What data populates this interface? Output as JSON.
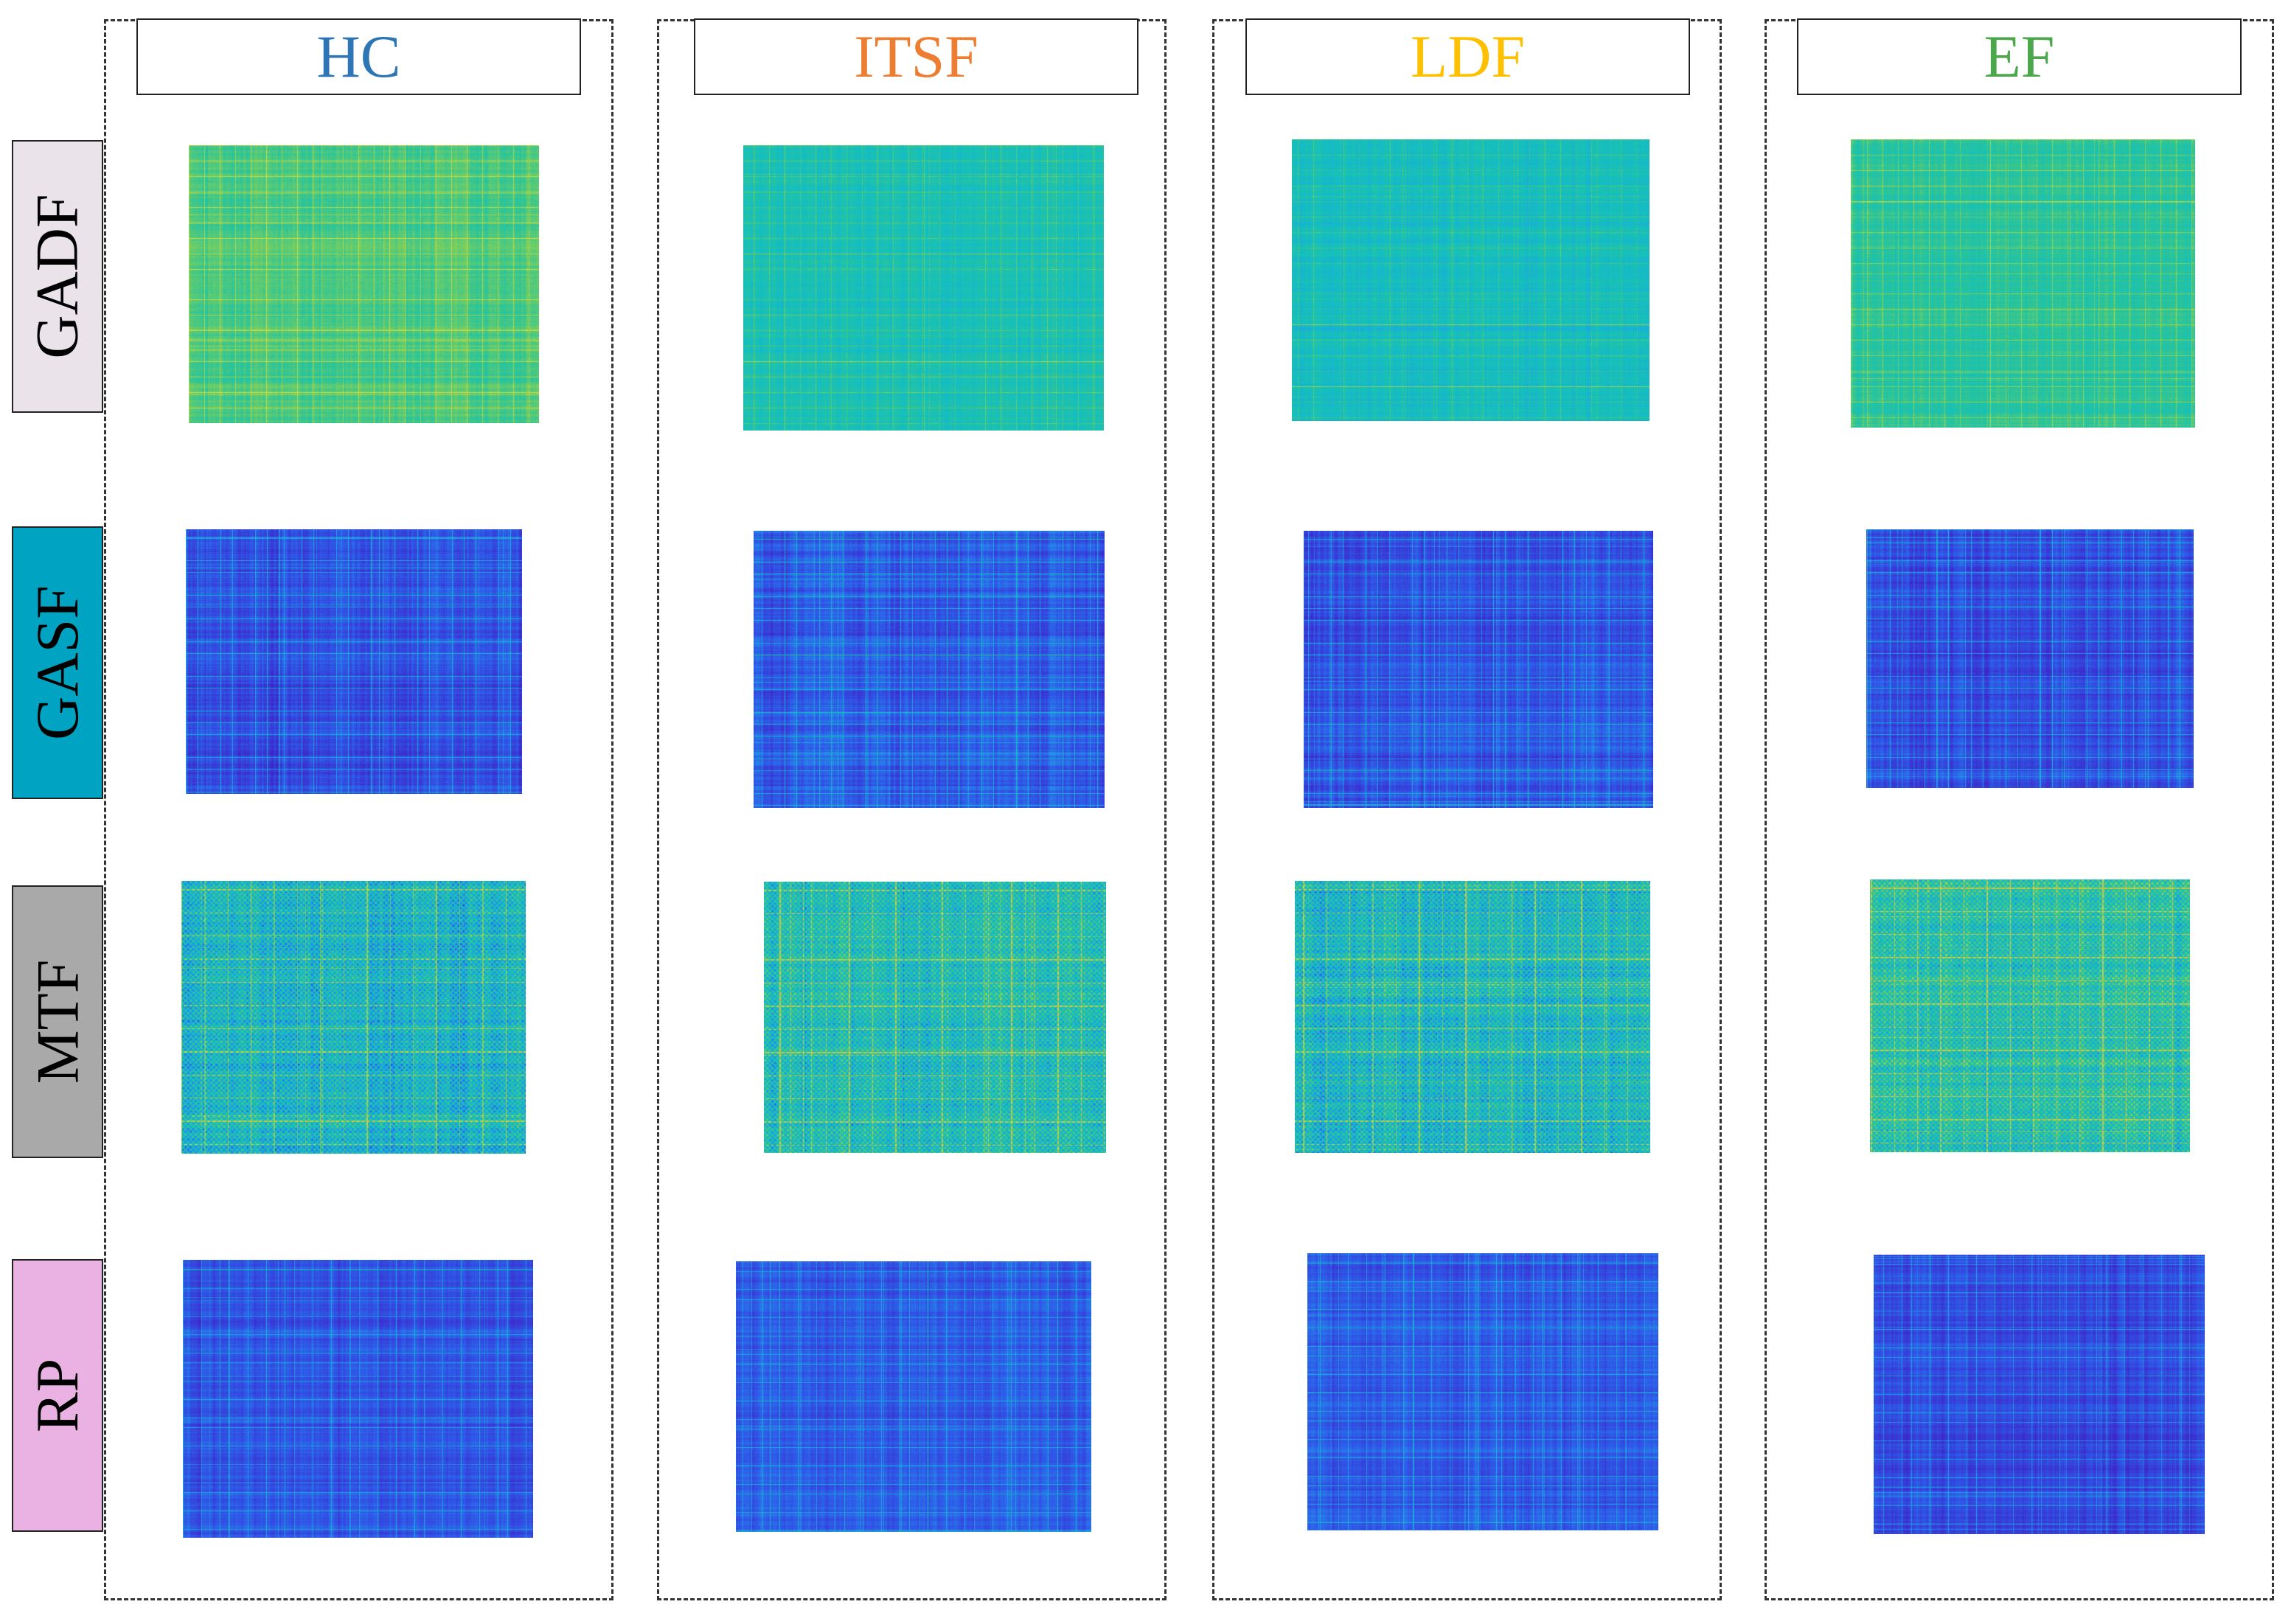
{
  "columns": [
    {
      "label": "HC",
      "color": "#2E75B6"
    },
    {
      "label": "ITSF",
      "color": "#ED7D31"
    },
    {
      "label": "LDF",
      "color": "#FFC000"
    },
    {
      "label": "EF",
      "color": "#4CA64C"
    }
  ],
  "rows": [
    {
      "label": "GADF",
      "bg": "#EAE3EA",
      "pattern": "gadf"
    },
    {
      "label": "GASF",
      "bg": "#00A3C2",
      "pattern": "gasf"
    },
    {
      "label": "MTF",
      "bg": "#A9A9A9",
      "pattern": "mtf"
    },
    {
      "label": "RP",
      "bg": "#E9B2E3",
      "pattern": "rp"
    }
  ],
  "palette": {
    "dark_blue": "#3E26C9",
    "blue": "#2E5CEA",
    "light_blue": "#1FA3E6",
    "cyan": "#14BFBF",
    "teal_green": "#2AC49A",
    "green": "#7FD05A",
    "yellow": "#D8DC3A",
    "orange": "#E8A64E"
  }
}
